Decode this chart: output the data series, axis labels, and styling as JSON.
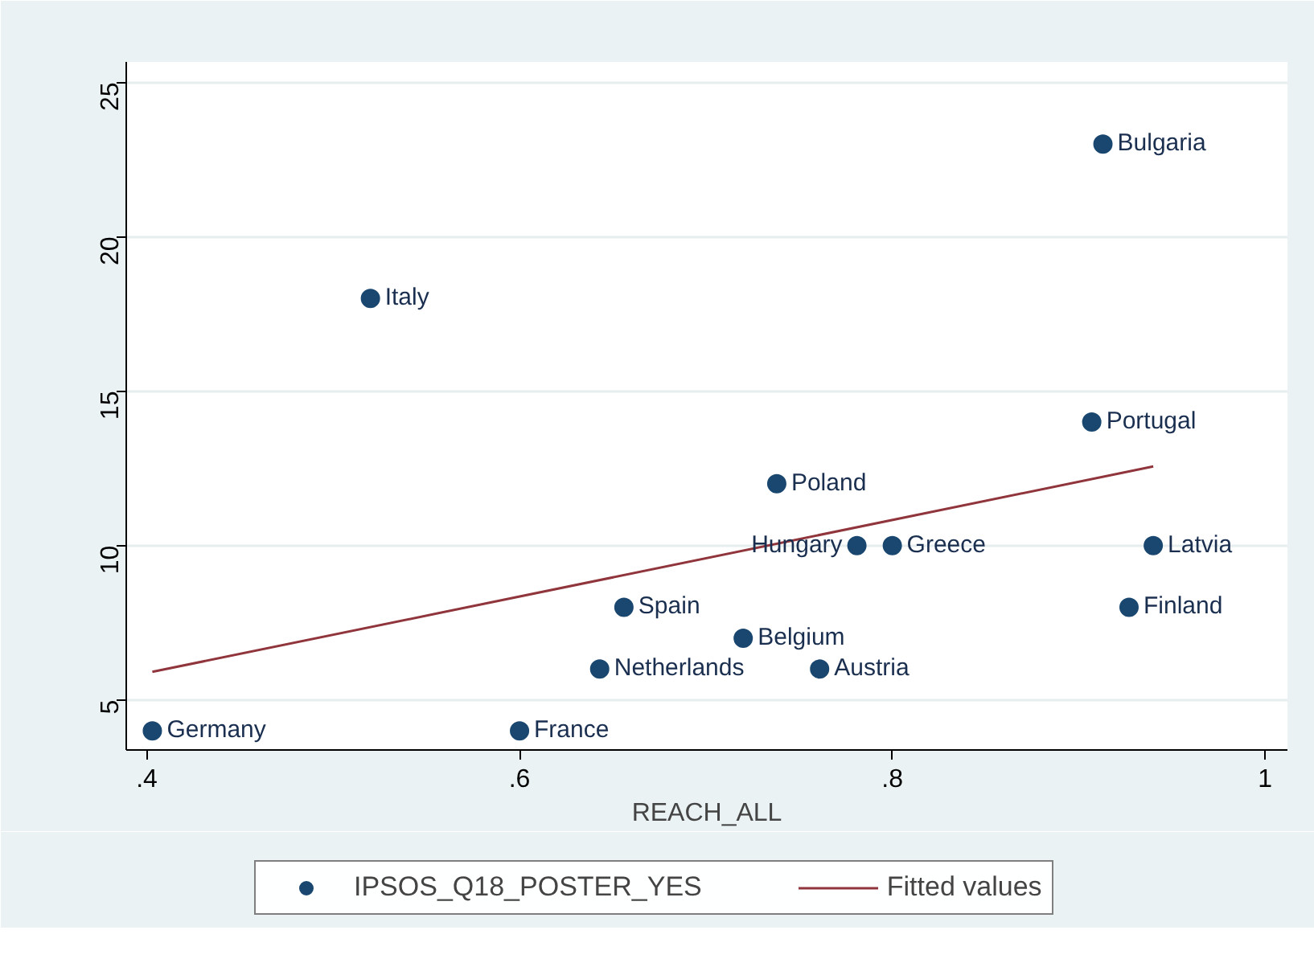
{
  "chart_data": {
    "type": "scatter",
    "xlabel": "REACH_ALL",
    "xlim": [
      0.389,
      1.012
    ],
    "ylim": [
      3.38,
      25.66
    ],
    "xticks": [
      {
        "value": 0.4,
        "label": ".4"
      },
      {
        "value": 0.6,
        "label": ".6"
      },
      {
        "value": 0.8,
        "label": ".8"
      },
      1
    ],
    "yticks": [
      5,
      10,
      15,
      20,
      25
    ],
    "grid": "y",
    "legend": "bottom",
    "series": [
      {
        "name": "IPSOS_Q18_POSTER_YES",
        "marker": "circle",
        "color": "#1a476f",
        "x": [
          0.403,
          0.52,
          0.6,
          0.643,
          0.656,
          0.72,
          0.738,
          0.761,
          0.781,
          0.8,
          0.907,
          0.913,
          0.927,
          0.94
        ],
        "values": [
          4,
          18,
          4,
          6,
          8,
          7,
          12,
          6,
          10,
          10,
          14,
          23,
          8,
          10
        ]
      },
      {
        "name": "Fitted values",
        "type": "line",
        "color": "#90353b",
        "x": [
          0.403,
          0.94
        ],
        "values": [
          5.91,
          12.56
        ]
      }
    ],
    "annotations": [
      {
        "text": "Germany",
        "x": 0.403,
        "y": 4
      },
      {
        "text": "Italy",
        "x": 0.52,
        "y": 18
      },
      {
        "text": "France",
        "x": 0.6,
        "y": 4
      },
      {
        "text": "Netherlands",
        "x": 0.643,
        "y": 6
      },
      {
        "text": "Spain",
        "x": 0.656,
        "y": 8
      },
      {
        "text": "Belgium",
        "x": 0.72,
        "y": 7
      },
      {
        "text": "Poland",
        "x": 0.738,
        "y": 12
      },
      {
        "text": "Austria",
        "x": 0.761,
        "y": 6
      },
      {
        "text": "Hungary",
        "x": 0.781,
        "y": 10
      },
      {
        "text": "Greece",
        "x": 0.8,
        "y": 10
      },
      {
        "text": "Portugal",
        "x": 0.907,
        "y": 14
      },
      {
        "text": "Bulgaria",
        "x": 0.913,
        "y": 23
      },
      {
        "text": "Finland",
        "x": 0.927,
        "y": 8
      },
      {
        "text": "Latvia",
        "x": 0.94,
        "y": 10
      }
    ]
  }
}
